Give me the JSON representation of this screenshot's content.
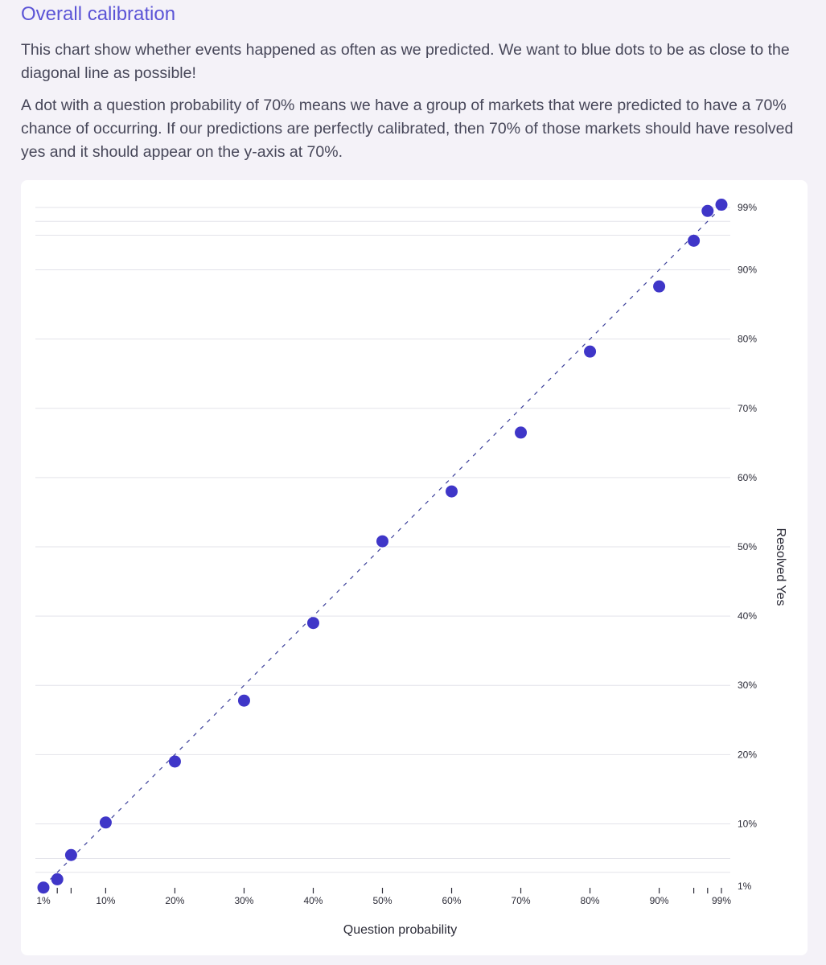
{
  "header": {
    "title": "Overall calibration",
    "paragraph1": "This chart show whether events happened as often as we predicted. We want to blue dots to be as close to the diagonal line as possible!",
    "paragraph2": "A dot with a question probability of 70% means we have a group of markets that were predicted to have a 70% chance of occurring. If our predictions are perfectly calibrated, then 70% of those markets should have resolved yes and it should appear on the y-axis at 70%."
  },
  "colors": {
    "accent": "#5b54d6",
    "dot": "#3f36c8",
    "diagonal": "#3b3f9a",
    "grid": "#e3e3ea"
  },
  "chart_data": {
    "type": "scatter",
    "xlabel": "Question probability",
    "ylabel": "Resolved Yes",
    "xlim": [
      1,
      99
    ],
    "ylim": [
      1,
      99
    ],
    "x_ticks": [
      1,
      3,
      5,
      10,
      20,
      30,
      40,
      50,
      60,
      70,
      80,
      90,
      95,
      97,
      99
    ],
    "x_tick_labels": [
      "1%",
      "",
      "",
      "10%",
      "20%",
      "30%",
      "40%",
      "50%",
      "60%",
      "70%",
      "80%",
      "90%",
      "",
      "",
      "99%"
    ],
    "y_gridlines": [
      3,
      5,
      10,
      20,
      30,
      40,
      50,
      60,
      70,
      80,
      90,
      95,
      97,
      99
    ],
    "y_tick_values": [
      1,
      10,
      20,
      30,
      40,
      50,
      60,
      70,
      80,
      90,
      99
    ],
    "y_tick_labels": [
      "1%",
      "10%",
      "20%",
      "30%",
      "40%",
      "50%",
      "60%",
      "70%",
      "80%",
      "90%",
      "99%"
    ],
    "reference_line": "diagonal dashed y = x",
    "grid": true,
    "points": [
      {
        "x": 1,
        "y": 0.8
      },
      {
        "x": 3,
        "y": 2
      },
      {
        "x": 5,
        "y": 5.5
      },
      {
        "x": 10,
        "y": 10.2
      },
      {
        "x": 20,
        "y": 19
      },
      {
        "x": 30,
        "y": 27.8
      },
      {
        "x": 40,
        "y": 39
      },
      {
        "x": 50,
        "y": 50.8
      },
      {
        "x": 60,
        "y": 58
      },
      {
        "x": 70,
        "y": 66.5
      },
      {
        "x": 80,
        "y": 78.2
      },
      {
        "x": 90,
        "y": 87.6
      },
      {
        "x": 95,
        "y": 94.2
      },
      {
        "x": 97,
        "y": 98.5
      },
      {
        "x": 99,
        "y": 99.4
      }
    ]
  }
}
